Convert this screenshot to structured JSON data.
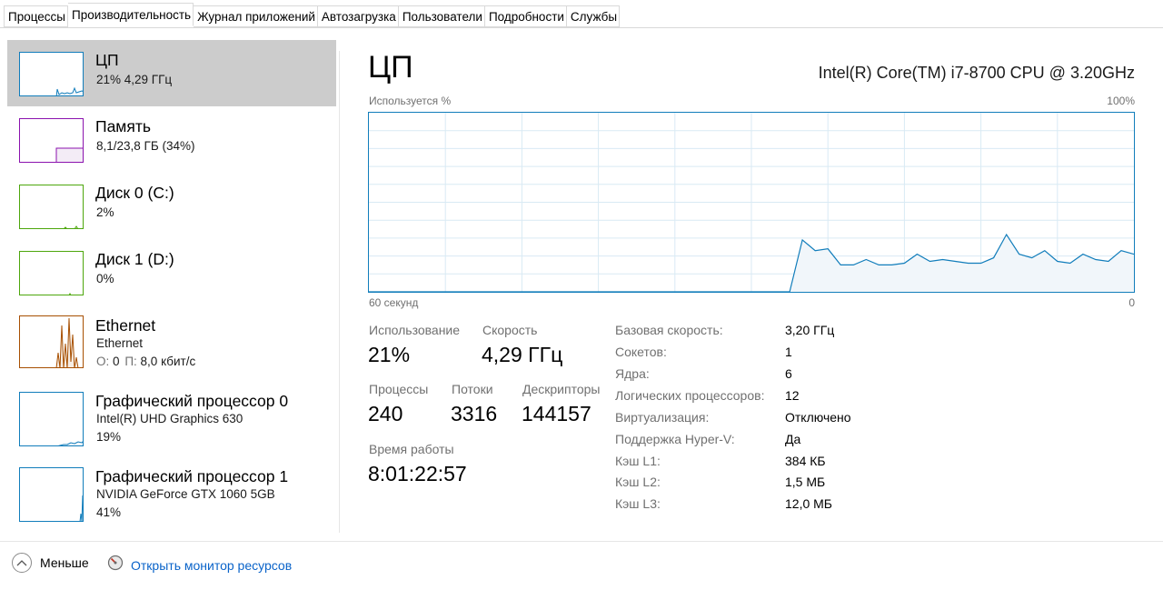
{
  "tabs": [
    {
      "label": "Процессы"
    },
    {
      "label": "Производительность"
    },
    {
      "label": "Журнал приложений"
    },
    {
      "label": "Автозагрузка"
    },
    {
      "label": "Пользователи"
    },
    {
      "label": "Подробности"
    },
    {
      "label": "Службы"
    }
  ],
  "active_tab": "Производительность",
  "sidebar": {
    "items": [
      {
        "title": "ЦП",
        "line1": "21%  4,29 ГГц",
        "color": "#117dbb"
      },
      {
        "title": "Память",
        "line1": "8,1/23,8 ГБ (34%)",
        "color": "#8b12ae"
      },
      {
        "title": "Диск 0 (C:)",
        "line1": "2%",
        "color": "#4da60c"
      },
      {
        "title": "Диск 1 (D:)",
        "line1": "0%",
        "color": "#4da60c"
      },
      {
        "title": "Ethernet",
        "line1": "Ethernet",
        "line2_o_label": "О:",
        "line2_o_value": "0",
        "line2_p_label": "П:",
        "line2_p_value": "8,0 кбит/с",
        "color": "#a74f01"
      },
      {
        "title": "Графический процессор 0",
        "line1": "Intel(R) UHD Graphics 630",
        "line2": "19%",
        "color": "#117dbb"
      },
      {
        "title": "Графический процессор 1",
        "line1": "NVIDIA GeForce GTX 1060 5GB",
        "line2": "41%",
        "color": "#117dbb"
      }
    ]
  },
  "main": {
    "title": "ЦП",
    "cpu_name": "Intel(R) Core(TM) i7-8700 CPU @ 3.20GHz",
    "graph": {
      "top_left_label": "Используется %",
      "top_right_label": "100%",
      "bottom_left_label": "60 секунд",
      "bottom_right_label": "0",
      "line_color": "#117dbb",
      "fill_color": "#f1f6fa"
    },
    "stats": {
      "usage_label": "Использование",
      "usage_value": "21%",
      "speed_label": "Скорость",
      "speed_value": "4,29 ГГц",
      "processes_label": "Процессы",
      "processes_value": "240",
      "threads_label": "Потоки",
      "threads_value": "3316",
      "handles_label": "Дескрипторы",
      "handles_value": "144157",
      "uptime_label": "Время работы",
      "uptime_value": "8:01:22:57"
    },
    "info": [
      {
        "label": "Базовая скорость:",
        "value": "3,20 ГГц"
      },
      {
        "label": "Сокетов:",
        "value": "1"
      },
      {
        "label": "Ядра:",
        "value": "6"
      },
      {
        "label": "Логических процессоров:",
        "value": "12"
      },
      {
        "label": "Виртуализация:",
        "value": "Отключено"
      },
      {
        "label": "Поддержка Hyper-V:",
        "value": "Да"
      },
      {
        "label": "Кэш L1:",
        "value": "384 КБ"
      },
      {
        "label": "Кэш L2:",
        "value": "1,5 МБ"
      },
      {
        "label": "Кэш L3:",
        "value": "12,0 МБ"
      }
    ]
  },
  "chart_data": {
    "type": "area",
    "x": [
      60,
      59,
      58,
      57,
      56,
      55,
      54,
      53,
      52,
      51,
      50,
      49,
      48,
      47,
      46,
      45,
      44,
      43,
      42,
      41,
      40,
      39,
      38,
      37,
      36,
      35,
      34,
      33,
      32,
      31,
      30,
      29,
      28,
      27,
      26,
      25,
      24,
      23,
      22,
      21,
      20,
      19,
      18,
      17,
      16,
      15,
      14,
      13,
      12,
      11,
      10,
      9,
      8,
      7,
      6,
      5,
      4,
      3,
      2,
      1,
      0
    ],
    "values": [
      0,
      0,
      0,
      0,
      0,
      0,
      0,
      0,
      0,
      0,
      0,
      0,
      0,
      0,
      0,
      0,
      0,
      0,
      0,
      0,
      0,
      0,
      0,
      0,
      0,
      0,
      0,
      0,
      0,
      0,
      0,
      0,
      0,
      0,
      29,
      23,
      24,
      15,
      15,
      18,
      15,
      15,
      16,
      21,
      17,
      18,
      17,
      16,
      16,
      19,
      32,
      21,
      19,
      23,
      17,
      16,
      21,
      18,
      17,
      23,
      21
    ],
    "ylim": [
      0,
      100
    ],
    "xlabel": "60 секунд",
    "ylabel": "Используется %"
  },
  "footer": {
    "less_label": "Меньше",
    "monitor_label": "Открыть монитор ресурсов"
  }
}
